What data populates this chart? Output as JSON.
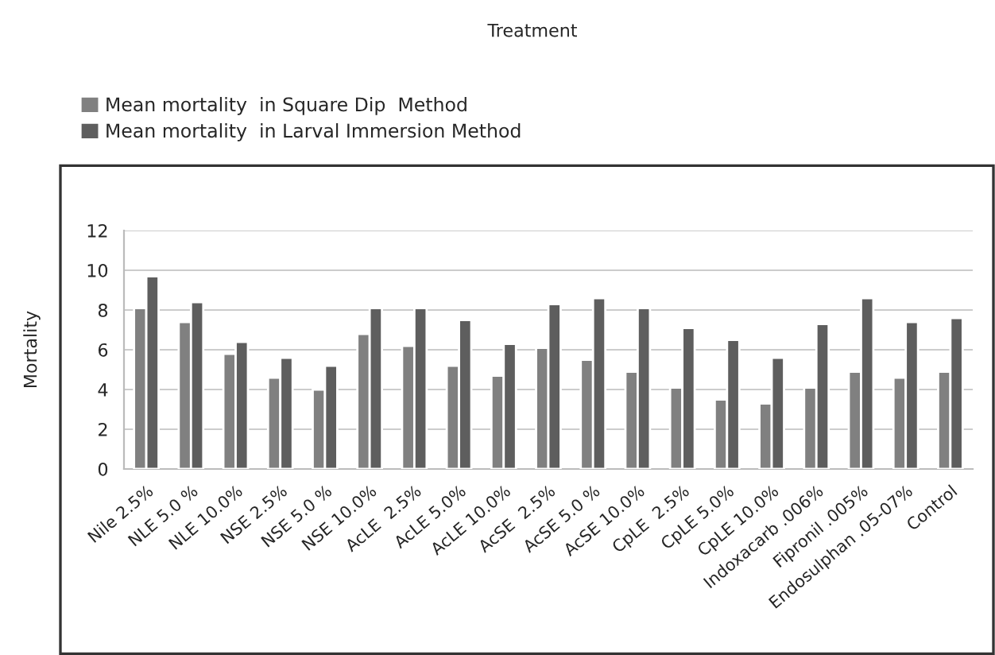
{
  "chart_data": {
    "type": "bar",
    "title": "Treatment",
    "ylabel": "Mortality",
    "categories": [
      "Nile 2.5%",
      "NLE 5.0 %",
      "NLE 10.0%",
      "NSE 2.5%",
      "NSE 5.0 %",
      "NSE 10.0%",
      "AcLE  2.5%",
      "AcLE 5.0%",
      "AcLE 10.0%",
      "AcSE  2.5%",
      "AcSE 5.0 %",
      "AcSE 10.0%",
      "CpLE  2.5%",
      "CpLE 5.0%",
      "CpLE 10.0%",
      "Indoxacarb .006%",
      "Fipronil .005%",
      "Endosulphan .05-07%",
      "Control"
    ],
    "series": [
      {
        "name": "Mean mortality  in Square Dip  Method",
        "color": "#808080",
        "values": [
          8.1,
          7.4,
          5.8,
          4.6,
          4.0,
          6.8,
          6.2,
          5.2,
          4.7,
          6.1,
          5.5,
          4.9,
          4.1,
          3.5,
          3.3,
          4.1,
          4.9,
          4.6,
          4.9
        ]
      },
      {
        "name": "Mean mortality  in Larval Immersion Method",
        "color": "#5e5e5e",
        "values": [
          9.7,
          8.4,
          6.4,
          5.6,
          5.2,
          8.1,
          8.1,
          7.5,
          6.3,
          8.3,
          8.6,
          8.1,
          7.1,
          6.5,
          5.6,
          7.3,
          8.6,
          7.4,
          7.6
        ]
      }
    ],
    "ylim": [
      0,
      12
    ],
    "yticks": [
      0,
      2,
      4,
      6,
      8,
      10,
      12
    ],
    "grid": "y",
    "legend": "top left"
  }
}
